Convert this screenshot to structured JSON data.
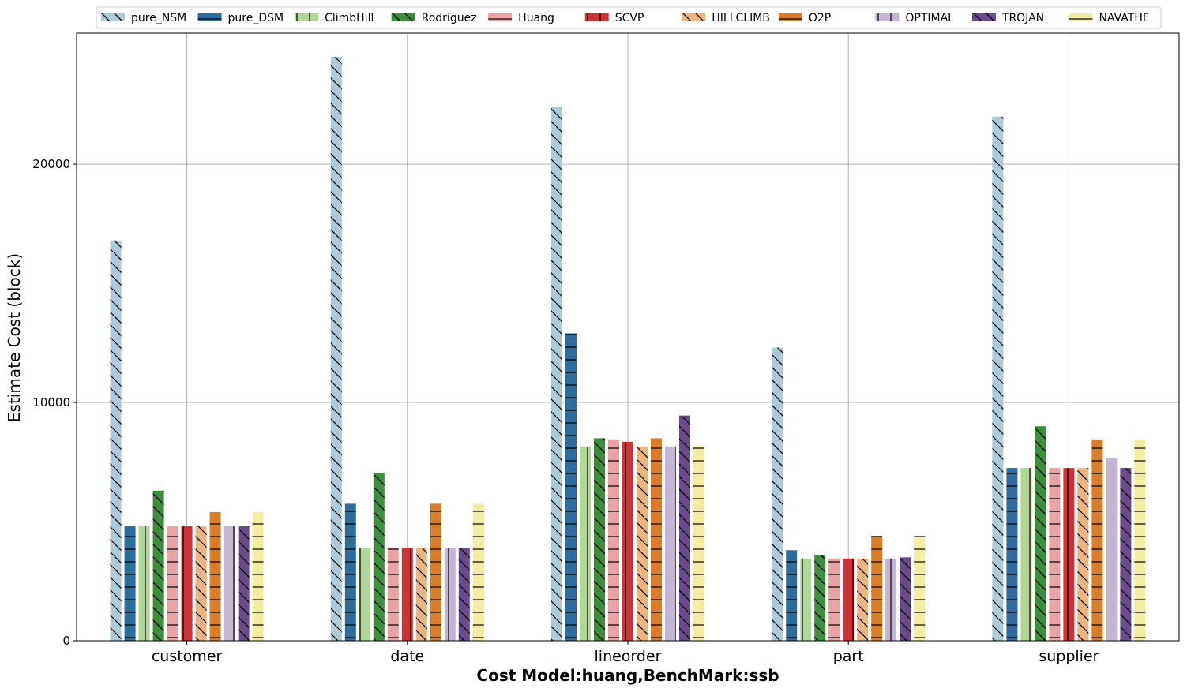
{
  "chart_data": {
    "type": "bar",
    "xlabel": "Cost Model:huang,BenchMark:ssb",
    "ylabel": "Estimate Cost (block)",
    "ylim": [
      0,
      25500
    ],
    "yticks": [
      0,
      10000,
      20000
    ],
    "grid": true,
    "legend_position": "top",
    "categories": [
      "customer",
      "date",
      "lineorder",
      "part",
      "supplier"
    ],
    "series": [
      {
        "name": "pure_NSM",
        "color": "#adcad8",
        "hatch": "diag",
        "values": [
          16800,
          24500,
          22400,
          12300,
          22000
        ]
      },
      {
        "name": "pure_DSM",
        "color": "#2d6c9d",
        "hatch": "horiz",
        "values": [
          4800,
          5750,
          12900,
          3800,
          7250
        ]
      },
      {
        "name": "ClimbHill",
        "color": "#b0d597",
        "hatch": "vert",
        "values": [
          4800,
          3900,
          8150,
          3450,
          7250
        ]
      },
      {
        "name": "Rodriguez",
        "color": "#3c8e3c",
        "hatch": "diag",
        "values": [
          6300,
          7050,
          8500,
          3600,
          9000
        ]
      },
      {
        "name": "Huang",
        "color": "#e9a3a5",
        "hatch": "horiz",
        "values": [
          4800,
          3900,
          8450,
          3450,
          7250
        ]
      },
      {
        "name": "SCVP",
        "color": "#cb3336",
        "hatch": "vert",
        "values": [
          4800,
          3900,
          8350,
          3450,
          7250
        ]
      },
      {
        "name": "HILLCLIMB",
        "color": "#eab580",
        "hatch": "diag",
        "values": [
          4800,
          3900,
          8150,
          3450,
          7250
        ]
      },
      {
        "name": "O2P",
        "color": "#d97d28",
        "hatch": "horiz",
        "values": [
          5400,
          5750,
          8500,
          4400,
          8450
        ]
      },
      {
        "name": "OPTIMAL",
        "color": "#c6b4d3",
        "hatch": "vert",
        "values": [
          4800,
          3900,
          8150,
          3450,
          7650
        ]
      },
      {
        "name": "TROJAN",
        "color": "#694a8b",
        "hatch": "diag",
        "values": [
          4800,
          3900,
          9450,
          3500,
          7250
        ]
      },
      {
        "name": "NAVATHE",
        "color": "#f2eda2",
        "hatch": "horiz",
        "values": [
          5400,
          5750,
          8150,
          4400,
          8450
        ]
      }
    ]
  }
}
